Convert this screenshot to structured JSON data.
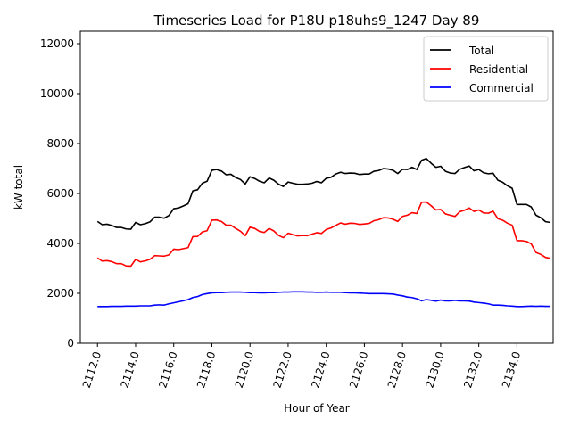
{
  "chart_data": {
    "type": "line",
    "title": "Timeseries Load for P18U p18uhs9_1247  Day 89",
    "xlabel": "Hour of Year",
    "ylabel": "kW total",
    "xlim": [
      2111.1,
      2135.9
    ],
    "ylim": [
      0,
      12500
    ],
    "xticks": [
      2112,
      2114,
      2116,
      2118,
      2120,
      2122,
      2124,
      2126,
      2128,
      2130,
      2132,
      2134
    ],
    "xtick_labels": [
      "2112.0",
      "2114.0",
      "2116.0",
      "2118.0",
      "2120.0",
      "2122.0",
      "2124.0",
      "2126.0",
      "2128.0",
      "2130.0",
      "2132.0",
      "2134.0"
    ],
    "yticks": [
      0,
      2000,
      4000,
      6000,
      8000,
      10000,
      12000
    ],
    "ytick_labels": [
      "0",
      "2000",
      "4000",
      "6000",
      "8000",
      "10000",
      "12000"
    ],
    "legend_position": "top-right",
    "colors": {
      "total": "#000000",
      "residential": "#ff0000",
      "commercial": "#0000ff"
    },
    "x": [
      2112.0,
      2112.25,
      2112.5,
      2112.75,
      2113.0,
      2113.25,
      2113.5,
      2113.75,
      2114.0,
      2114.25,
      2114.5,
      2114.75,
      2115.0,
      2115.25,
      2115.5,
      2115.75,
      2116.0,
      2116.25,
      2116.5,
      2116.75,
      2117.0,
      2117.25,
      2117.5,
      2117.75,
      2118.0,
      2118.25,
      2118.5,
      2118.75,
      2119.0,
      2119.25,
      2119.5,
      2119.75,
      2120.0,
      2120.25,
      2120.5,
      2120.75,
      2121.0,
      2121.25,
      2121.5,
      2121.75,
      2122.0,
      2122.25,
      2122.5,
      2122.75,
      2123.0,
      2123.25,
      2123.5,
      2123.75,
      2124.0,
      2124.25,
      2124.5,
      2124.75,
      2125.0,
      2125.25,
      2125.5,
      2125.75,
      2126.0,
      2126.25,
      2126.5,
      2126.75,
      2127.0,
      2127.25,
      2127.5,
      2127.75,
      2128.0,
      2128.25,
      2128.5,
      2128.75,
      2129.0,
      2129.25,
      2129.5,
      2129.75,
      2130.0,
      2130.25,
      2130.5,
      2130.75,
      2131.0,
      2131.25,
      2131.5,
      2131.75,
      2132.0,
      2132.25,
      2132.5,
      2132.75,
      2133.0,
      2133.25,
      2133.5,
      2133.75,
      2134.0,
      2134.25,
      2134.5,
      2134.75,
      2135.0,
      2135.25,
      2135.5,
      2135.75
    ],
    "series": [
      {
        "name": "Total",
        "key": "total",
        "values": [
          4880,
          4750,
          4770,
          4720,
          4640,
          4640,
          4580,
          4570,
          4840,
          4750,
          4790,
          4860,
          5050,
          5050,
          5010,
          5120,
          5390,
          5420,
          5500,
          5590,
          6100,
          6150,
          6410,
          6490,
          6930,
          6960,
          6900,
          6750,
          6770,
          6640,
          6560,
          6380,
          6670,
          6600,
          6490,
          6430,
          6620,
          6530,
          6370,
          6280,
          6460,
          6410,
          6370,
          6370,
          6380,
          6410,
          6480,
          6430,
          6610,
          6650,
          6780,
          6850,
          6800,
          6820,
          6810,
          6760,
          6780,
          6780,
          6890,
          6920,
          7000,
          6980,
          6930,
          6800,
          6970,
          6960,
          7050,
          6960,
          7330,
          7400,
          7210,
          7050,
          7090,
          6890,
          6820,
          6800,
          6970,
          7040,
          7100,
          6910,
          6960,
          6830,
          6790,
          6810,
          6530,
          6450,
          6310,
          6210,
          5560,
          5560,
          5560,
          5460,
          5130,
          5030,
          4870,
          4840
        ]
      },
      {
        "name": "Residential",
        "key": "residential",
        "values": [
          3420,
          3290,
          3310,
          3270,
          3190,
          3190,
          3100,
          3090,
          3360,
          3260,
          3300,
          3360,
          3510,
          3500,
          3490,
          3540,
          3770,
          3750,
          3790,
          3830,
          4270,
          4280,
          4460,
          4510,
          4930,
          4940,
          4880,
          4730,
          4730,
          4600,
          4490,
          4310,
          4650,
          4600,
          4480,
          4440,
          4600,
          4500,
          4320,
          4230,
          4410,
          4350,
          4300,
          4320,
          4310,
          4370,
          4430,
          4400,
          4560,
          4620,
          4720,
          4820,
          4770,
          4810,
          4800,
          4760,
          4780,
          4800,
          4910,
          4950,
          5030,
          5020,
          4970,
          4880,
          5080,
          5130,
          5230,
          5200,
          5650,
          5660,
          5510,
          5340,
          5360,
          5180,
          5130,
          5080,
          5270,
          5330,
          5420,
          5280,
          5340,
          5220,
          5210,
          5290,
          4990,
          4930,
          4810,
          4730,
          4110,
          4110,
          4080,
          3980,
          3640,
          3560,
          3440,
          3400
        ]
      },
      {
        "name": "Commercial",
        "key": "commercial",
        "values": [
          1470,
          1470,
          1470,
          1480,
          1480,
          1480,
          1490,
          1490,
          1490,
          1500,
          1500,
          1500,
          1530,
          1540,
          1530,
          1580,
          1620,
          1660,
          1700,
          1750,
          1830,
          1870,
          1950,
          1990,
          2020,
          2030,
          2030,
          2040,
          2050,
          2050,
          2050,
          2040,
          2030,
          2030,
          2020,
          2020,
          2030,
          2030,
          2040,
          2050,
          2050,
          2060,
          2060,
          2060,
          2050,
          2050,
          2040,
          2040,
          2050,
          2040,
          2040,
          2040,
          2030,
          2020,
          2020,
          2010,
          2000,
          1990,
          1990,
          1990,
          1990,
          1980,
          1970,
          1930,
          1900,
          1850,
          1830,
          1780,
          1700,
          1750,
          1720,
          1690,
          1730,
          1700,
          1700,
          1720,
          1700,
          1700,
          1690,
          1650,
          1630,
          1610,
          1580,
          1530,
          1530,
          1520,
          1500,
          1490,
          1470,
          1470,
          1480,
          1490,
          1480,
          1490,
          1480,
          1480
        ]
      }
    ]
  }
}
